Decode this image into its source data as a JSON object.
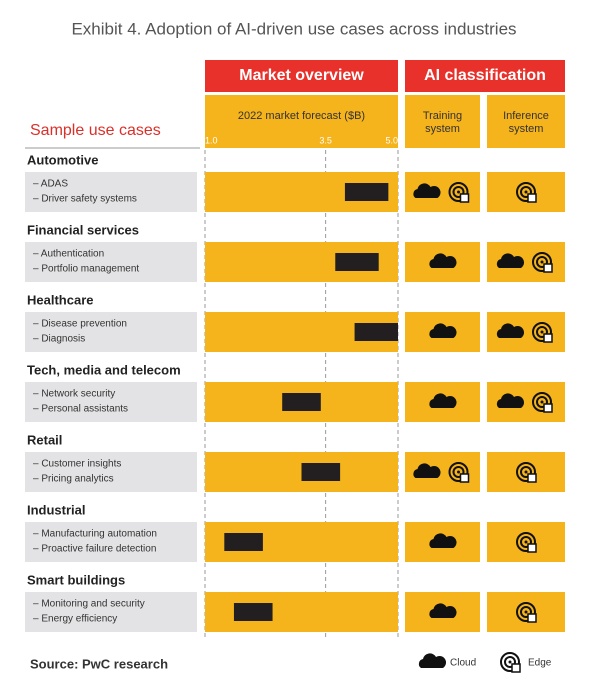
{
  "chart_data": {
    "type": "range-bar",
    "title": "Exhibit 4. Adoption of AI-driven use cases across industries",
    "row_header": "Sample use cases",
    "group_headers": [
      "Market overview",
      "AI classification"
    ],
    "x_label": "2022 market forecast ($B)",
    "xlim": [
      1,
      5
    ],
    "xticks": [
      {
        "value": 1,
        "label": "1.0"
      },
      {
        "value": 3.5,
        "label": "3.5"
      },
      {
        "value": 5,
        "label": "5.0"
      }
    ],
    "class_headers": [
      "Training system",
      "Inference system"
    ],
    "bar_color": "#231f20",
    "header_color": "#e8312a",
    "panel_color": "#f5b31c",
    "rows": [
      {
        "industry": "Automotive",
        "use_cases": [
          "– ADAS",
          "– Driver safety systems"
        ],
        "low": 3.9,
        "high": 4.8,
        "training": [
          "Cloud",
          "Edge"
        ],
        "inference": [
          "Edge"
        ]
      },
      {
        "industry": "Financial services",
        "use_cases": [
          "– Authentication",
          "– Portfolio management"
        ],
        "low": 3.7,
        "high": 4.6,
        "training": [
          "Cloud"
        ],
        "inference": [
          "Cloud",
          "Edge"
        ]
      },
      {
        "industry": "Healthcare",
        "use_cases": [
          "– Disease prevention",
          "– Diagnosis"
        ],
        "low": 4.1,
        "high": 5.0,
        "training": [
          "Cloud"
        ],
        "inference": [
          "Cloud",
          "Edge"
        ]
      },
      {
        "industry": "Tech, media and telecom",
        "use_cases": [
          "– Network security",
          "– Personal assistants"
        ],
        "low": 2.6,
        "high": 3.4,
        "training": [
          "Cloud"
        ],
        "inference": [
          "Cloud",
          "Edge"
        ]
      },
      {
        "industry": "Retail",
        "use_cases": [
          "– Customer insights",
          "– Pricing analytics"
        ],
        "low": 3.0,
        "high": 3.8,
        "training": [
          "Cloud",
          "Edge"
        ],
        "inference": [
          "Edge"
        ]
      },
      {
        "industry": "Industrial",
        "use_cases": [
          "– Manufacturing automation",
          "– Proactive failure detection"
        ],
        "low": 1.4,
        "high": 2.2,
        "training": [
          "Cloud"
        ],
        "inference": [
          "Edge"
        ]
      },
      {
        "industry": "Smart buildings",
        "use_cases": [
          "– Monitoring and security",
          "– Energy efficiency"
        ],
        "low": 1.6,
        "high": 2.4,
        "training": [
          "Cloud"
        ],
        "inference": [
          "Edge"
        ]
      }
    ],
    "legend": [
      "Cloud",
      "Edge"
    ],
    "source": "Source: PwC research"
  }
}
